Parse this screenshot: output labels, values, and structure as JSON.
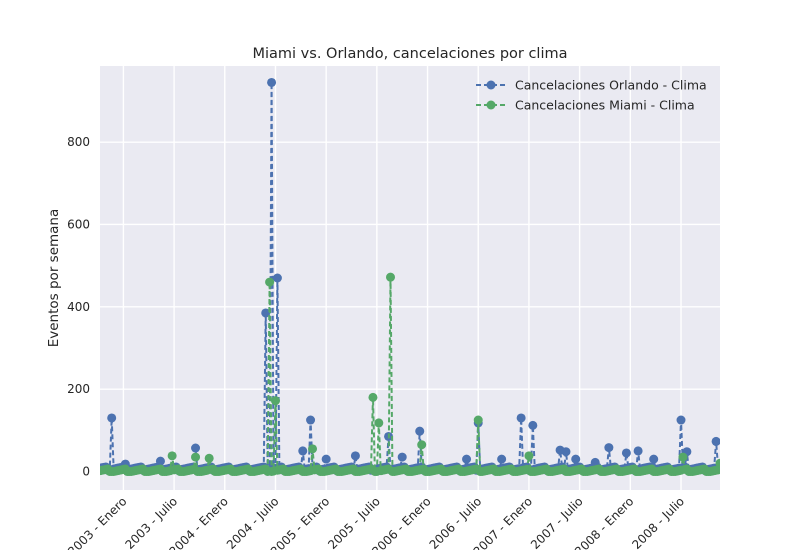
{
  "chart_data": {
    "type": "line",
    "title": "Miami vs. Orlando, cancelaciones por clima",
    "xlabel": "",
    "ylabel": "Eventos por semana",
    "ylim": [
      -45,
      985
    ],
    "yticks": [
      0,
      200,
      400,
      600,
      800
    ],
    "xlim_weeks": [
      0,
      318
    ],
    "xtick_labels": [
      "2003 - Enero",
      "2003 - Julio",
      "2004 - Enero",
      "2004 - Julio",
      "2005 - Enero",
      "2005 - Julio",
      "2006 - Enero",
      "2006 - Julio",
      "2007 - Enero",
      "2007 - Julio",
      "2008 - Enero",
      "2008 - Julio"
    ],
    "xtick_weeks": [
      12,
      38,
      64,
      90,
      116,
      142,
      168,
      194,
      220,
      246,
      272,
      298
    ],
    "grid": true,
    "legend_position": "upper-right",
    "series": [
      {
        "name": "Cancelaciones Orlando - Clima",
        "color": "#4c72b0",
        "baseline": 7,
        "peaks": [
          [
            6,
            130
          ],
          [
            13,
            18
          ],
          [
            31,
            25
          ],
          [
            49,
            57
          ],
          [
            85,
            385
          ],
          [
            88,
            945
          ],
          [
            91,
            470
          ],
          [
            104,
            50
          ],
          [
            108,
            125
          ],
          [
            116,
            30
          ],
          [
            131,
            38
          ],
          [
            148,
            85
          ],
          [
            155,
            35
          ],
          [
            164,
            98
          ],
          [
            188,
            30
          ],
          [
            194,
            118
          ],
          [
            206,
            30
          ],
          [
            216,
            130
          ],
          [
            222,
            112
          ],
          [
            236,
            52
          ],
          [
            239,
            48
          ],
          [
            244,
            30
          ],
          [
            254,
            22
          ],
          [
            261,
            58
          ],
          [
            270,
            45
          ],
          [
            276,
            50
          ],
          [
            284,
            30
          ],
          [
            298,
            125
          ],
          [
            301,
            48
          ],
          [
            316,
            73
          ]
        ]
      },
      {
        "name": "Cancelaciones Miami - Clima",
        "color": "#55a868",
        "baseline": 2,
        "peaks": [
          [
            37,
            38
          ],
          [
            49,
            35
          ],
          [
            56,
            32
          ],
          [
            87,
            460
          ],
          [
            90,
            172
          ],
          [
            109,
            55
          ],
          [
            140,
            180
          ],
          [
            143,
            118
          ],
          [
            149,
            472
          ],
          [
            165,
            65
          ],
          [
            194,
            125
          ],
          [
            220,
            38
          ],
          [
            299,
            35
          ],
          [
            318,
            20
          ]
        ]
      }
    ]
  }
}
